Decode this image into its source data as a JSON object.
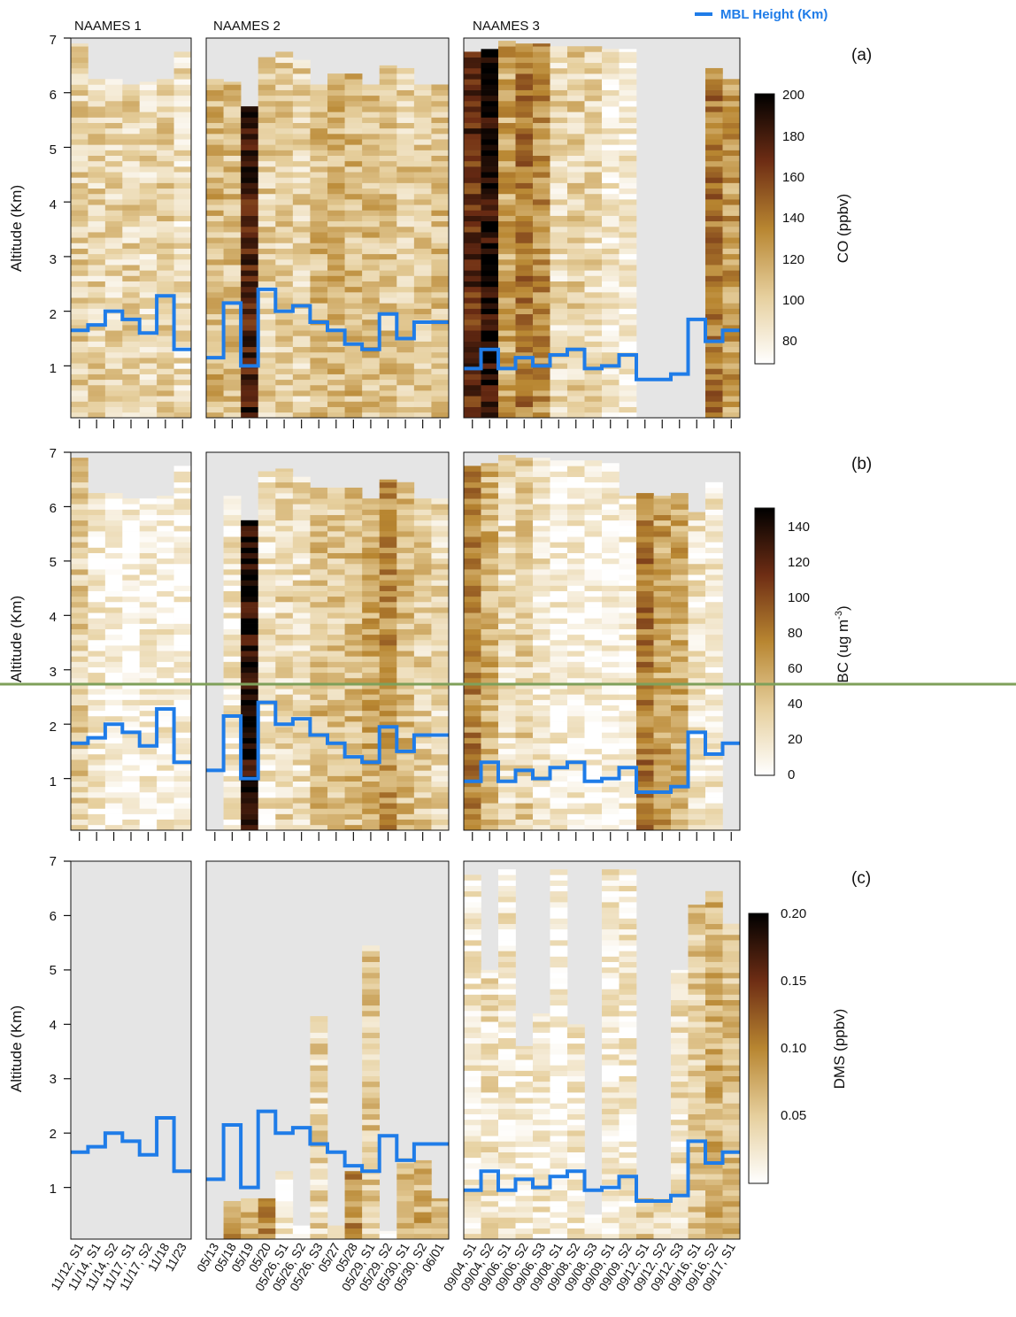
{
  "legend": {
    "label": "MBL Height  (Km)",
    "color": "#1f7ce8"
  },
  "colors": {
    "background": "#e5e5e5",
    "mbl_line": "#1f7ce8",
    "overlay_line": "#7fa05a"
  },
  "campaigns": [
    "NAAMES 1",
    "NAAMES 2",
    "NAAMES 3"
  ],
  "x_labels": [
    [
      "11/12, S1",
      "11/14, S1",
      "11/14, S2",
      "11/17, S1",
      "11/17, S2",
      "11/18",
      "11/23"
    ],
    [
      "05/13",
      "05/18",
      "05/19",
      "05/20",
      "05/26, S1",
      "05/26, S2",
      "05/26, S3",
      "05/27",
      "05/28",
      "05/29, S1",
      "05/29, S2",
      "05/30, S1",
      "05/30, S2",
      "06/01"
    ],
    [
      "09/04, S1",
      "09/04, S2",
      "09/06, S1",
      "09/06, S2",
      "09/06, S3",
      "09/08, S1",
      "09/08, S2",
      "09/08, S3",
      "09/09, S1",
      "09/09, S2",
      "09/12, S1",
      "09/12, S2",
      "09/12, S3",
      "09/16, S1",
      "09/16, S2",
      "09/17, S1"
    ]
  ],
  "chart_data": [
    {
      "type": "heatmap",
      "panel": "(a)",
      "ylabel": "Altitude (Km)",
      "yticks": [
        "1",
        "2",
        "3",
        "4",
        "5",
        "6",
        "7"
      ],
      "ylim": [
        0.05,
        7
      ],
      "colorbar": {
        "label": "CO (ppbv)",
        "range": [
          70,
          200
        ],
        "ticks": [
          "80",
          "100",
          "120",
          "140",
          "160",
          "180",
          "200"
        ]
      },
      "column_max_altitude": [
        [
          6.9,
          6.25,
          6.25,
          6.15,
          6.2,
          6.25,
          6.75
        ],
        [
          6.25,
          6.2,
          5.75,
          6.65,
          6.75,
          6.6,
          6.15,
          6.35,
          6.35,
          6.15,
          6.5,
          6.45,
          6.15,
          6.15
        ],
        [
          6.75,
          6.8,
          6.95,
          6.9,
          6.9,
          6.85,
          6.85,
          6.85,
          6.8,
          6.8,
          0,
          0,
          0,
          0,
          6.45,
          6.25
        ]
      ],
      "column_mean_value": [
        [
          100,
          98,
          96,
          98,
          95,
          100,
          92
        ],
        [
          112,
          108,
          180,
          100,
          100,
          98,
          110,
          112,
          110,
          110,
          106,
          102,
          104,
          108
        ],
        [
          170,
          190,
          120,
          140,
          130,
          95,
          100,
          95,
          85,
          82,
          0,
          0,
          0,
          0,
          140,
          125
        ]
      ],
      "mbl_height": [
        [
          1.65,
          1.75,
          2.0,
          1.85,
          1.6,
          2.28,
          1.3
        ],
        [
          1.15,
          2.15,
          1.0,
          2.4,
          2.0,
          2.1,
          1.8,
          1.65,
          1.4,
          1.3,
          1.95,
          1.5,
          1.8,
          1.8
        ],
        [
          0.95,
          1.3,
          0.95,
          1.15,
          1.0,
          1.2,
          1.3,
          0.95,
          1.0,
          1.2,
          0.75,
          0.75,
          0.85,
          1.85,
          1.45,
          1.65
        ]
      ]
    },
    {
      "type": "heatmap",
      "panel": "(b)",
      "ylabel": "Altitude (Km)",
      "yticks": [
        "1",
        "2",
        "3",
        "4",
        "5",
        "6",
        "7"
      ],
      "ylim": [
        0.05,
        7
      ],
      "colorbar": {
        "label_main": "BC (ug m",
        "label_sup": "-3",
        "label_end": ")",
        "range": [
          0,
          150
        ],
        "ticks": [
          "0",
          "20",
          "40",
          "60",
          "80",
          "100",
          "120",
          "140"
        ]
      },
      "column_max_altitude": [
        [
          6.9,
          6.25,
          6.25,
          6.15,
          6.15,
          6.2,
          6.75
        ],
        [
          0,
          6.2,
          5.75,
          6.65,
          6.7,
          6.55,
          6.35,
          6.35,
          6.35,
          6.15,
          6.5,
          6.45,
          6.15,
          6.15
        ],
        [
          6.75,
          6.8,
          6.95,
          6.9,
          6.9,
          6.85,
          6.85,
          6.85,
          6.8,
          6.2,
          6.25,
          6.2,
          6.25,
          5.9,
          6.45,
          0
        ]
      ],
      "column_mean_value": [
        [
          35,
          15,
          10,
          8,
          10,
          12,
          10
        ],
        [
          0,
          18,
          140,
          20,
          30,
          25,
          45,
          40,
          45,
          55,
          70,
          45,
          35,
          30
        ],
        [
          75,
          50,
          25,
          35,
          20,
          10,
          10,
          8,
          8,
          10,
          80,
          60,
          55,
          20,
          15,
          0
        ]
      ],
      "mbl_height": [
        [
          1.65,
          1.75,
          2.0,
          1.85,
          1.6,
          2.28,
          1.3
        ],
        [
          1.15,
          2.15,
          1.0,
          2.4,
          2.0,
          2.1,
          1.8,
          1.65,
          1.4,
          1.3,
          1.95,
          1.5,
          1.8,
          1.8
        ],
        [
          0.95,
          1.3,
          0.95,
          1.15,
          1.0,
          1.2,
          1.3,
          0.95,
          1.0,
          1.2,
          0.75,
          0.75,
          0.85,
          1.85,
          1.45,
          1.65
        ]
      ]
    },
    {
      "type": "heatmap",
      "panel": "(c)",
      "ylabel": "Altitude (Km)",
      "yticks": [
        "1",
        "2",
        "3",
        "4",
        "5",
        "6",
        "7"
      ],
      "ylim": [
        0.05,
        7
      ],
      "colorbar": {
        "label": "DMS (ppbv)",
        "range": [
          0,
          0.2
        ],
        "ticks": [
          "0.05",
          "0.10",
          "0.15",
          "0.20"
        ]
      },
      "column_max_altitude": [
        [
          0,
          0,
          0,
          0,
          0,
          0,
          0
        ],
        [
          0,
          0.75,
          0.8,
          0.8,
          1.3,
          0.3,
          4.15,
          0.3,
          1.3,
          5.45,
          0.2,
          1.55,
          1.5,
          0.8
        ],
        [
          6.75,
          5.0,
          6.85,
          3.6,
          4.2,
          6.85,
          4.0,
          0.5,
          6.85,
          6.85,
          0.8,
          0.8,
          5.0,
          6.2,
          6.45,
          5.85
        ]
      ],
      "column_mean_value": [
        [
          0,
          0,
          0,
          0,
          0,
          0,
          0
        ],
        [
          0,
          0.08,
          0.07,
          0.09,
          0.02,
          0.01,
          0.04,
          0.01,
          0.09,
          0.05,
          0.01,
          0.06,
          0.07,
          0.06
        ],
        [
          0.02,
          0.03,
          0.02,
          0.02,
          0.02,
          0.01,
          0.02,
          0.01,
          0.02,
          0.02,
          0.05,
          0.03,
          0.03,
          0.05,
          0.07,
          0.06
        ]
      ],
      "mbl_height": [
        [
          1.65,
          1.75,
          2.0,
          1.85,
          1.6,
          2.28,
          1.3
        ],
        [
          1.15,
          2.15,
          1.0,
          2.4,
          2.0,
          2.1,
          1.8,
          1.65,
          1.4,
          1.3,
          1.95,
          1.5,
          1.8,
          1.8
        ],
        [
          0.95,
          1.3,
          0.95,
          1.15,
          1.0,
          1.2,
          1.3,
          0.95,
          1.0,
          1.2,
          0.75,
          0.75,
          0.85,
          1.85,
          1.45,
          1.65
        ]
      ]
    }
  ]
}
